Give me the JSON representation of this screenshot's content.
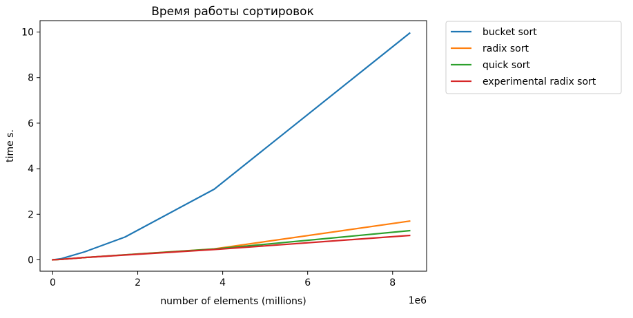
{
  "chart_data": {
    "type": "line",
    "title": "Время работы сортировок",
    "xlabel": "number of elements (millions)",
    "ylabel": "time s.",
    "x_offset_label": "1e6",
    "xlim": [
      -300000,
      8800000
    ],
    "ylim": [
      -0.5,
      10.5
    ],
    "xticks": [
      0,
      2000000,
      4000000,
      6000000,
      8000000
    ],
    "xtick_labels": [
      "0",
      "2",
      "4",
      "6",
      "8"
    ],
    "yticks": [
      0,
      2,
      4,
      6,
      8,
      10
    ],
    "ytick_labels": [
      "0",
      "2",
      "4",
      "6",
      "8",
      "10"
    ],
    "grid": false,
    "legend_position": "outside-upper-right",
    "series": [
      {
        "name": "bucket sort",
        "color": "#1f77b4",
        "x": [
          0,
          200000,
          750000,
          1700000,
          3800000,
          8400000
        ],
        "y": [
          0,
          0.05,
          0.35,
          1.0,
          3.1,
          9.95
        ]
      },
      {
        "name": "radix sort",
        "color": "#ff7f0e",
        "x": [
          0,
          200000,
          750000,
          1700000,
          3800000,
          8400000
        ],
        "y": [
          0,
          0.02,
          0.1,
          0.22,
          0.48,
          1.7
        ]
      },
      {
        "name": "quick sort",
        "color": "#2ca02c",
        "x": [
          0,
          200000,
          750000,
          1700000,
          3800000,
          8400000
        ],
        "y": [
          0,
          0.02,
          0.1,
          0.22,
          0.47,
          1.28
        ]
      },
      {
        "name": "experimental radix sort",
        "color": "#d62728",
        "x": [
          0,
          200000,
          750000,
          1700000,
          3800000,
          8400000
        ],
        "y": [
          0,
          0.02,
          0.1,
          0.21,
          0.45,
          1.07
        ]
      }
    ]
  }
}
